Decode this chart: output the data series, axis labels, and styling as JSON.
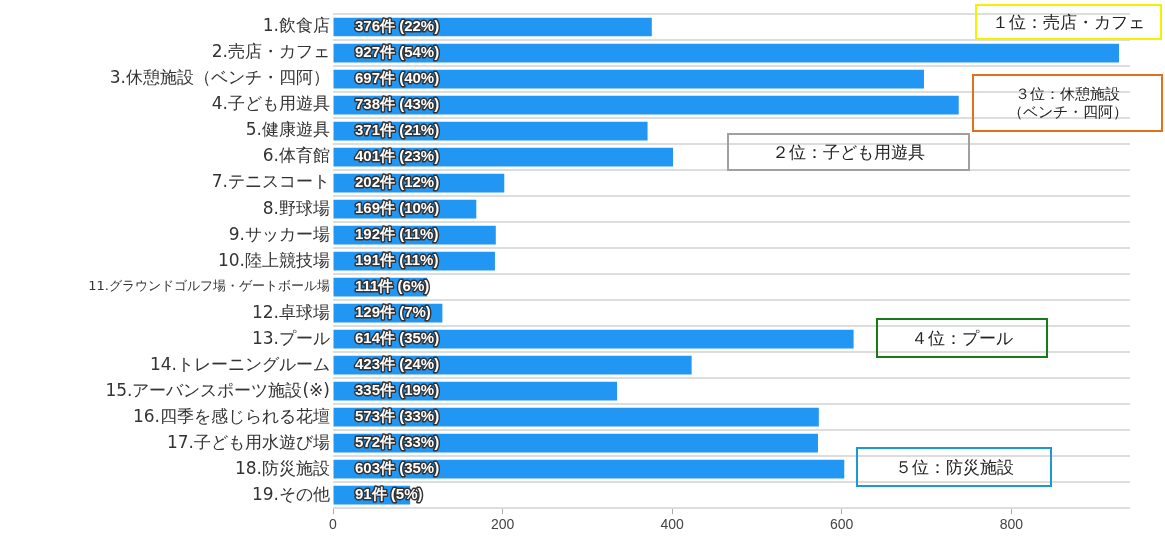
{
  "chart_data": {
    "type": "bar",
    "orientation": "horizontal",
    "categories": [
      "1.飲食店",
      "2.売店・カフェ",
      "3.休憩施設（ベンチ・四阿）",
      "4.子ども用遊具",
      "5.健康遊具",
      "6.体育館",
      "7.テニスコート",
      "8.野球場",
      "9.サッカー場",
      "10.陸上競技場",
      "11.グラウンドゴルフ場・ゲートボール場",
      "12.卓球場",
      "13.プール",
      "14.トレーニングルーム",
      "15.アーバンスポーツ施設(※)",
      "16.四季を感じられる花壇",
      "17.子ども用水遊び場",
      "18.防災施設",
      "19.その他"
    ],
    "values": [
      376,
      927,
      697,
      738,
      371,
      401,
      202,
      169,
      192,
      191,
      111,
      129,
      614,
      423,
      335,
      573,
      572,
      603,
      91
    ],
    "value_labels": [
      "376件 (22%)",
      "927件 (54%)",
      "697件 (40%)",
      "738件 (43%)",
      "371件 (21%)",
      "401件 (23%)",
      "202件 (12%)",
      "169件 (10%)",
      "192件 (11%)",
      "191件 (11%)",
      "111件 (6%)",
      "129件 (7%)",
      "614件 (35%)",
      "423件 (24%)",
      "335件 (19%)",
      "573件 (33%)",
      "572件 (33%)",
      "603件 (35%)",
      "91件 (5%)"
    ],
    "color": "#2196f3",
    "xlim": [
      0,
      940
    ],
    "xticks": [
      0,
      200,
      400,
      600,
      800
    ],
    "grid": "y",
    "legend": false,
    "annotations": [
      "１位：売店・カフェ",
      "２位：子ども用遊具",
      "３位：休憩施設（ベンチ・四阿）",
      "４位：プール",
      "５位：防災施設"
    ]
  }
}
